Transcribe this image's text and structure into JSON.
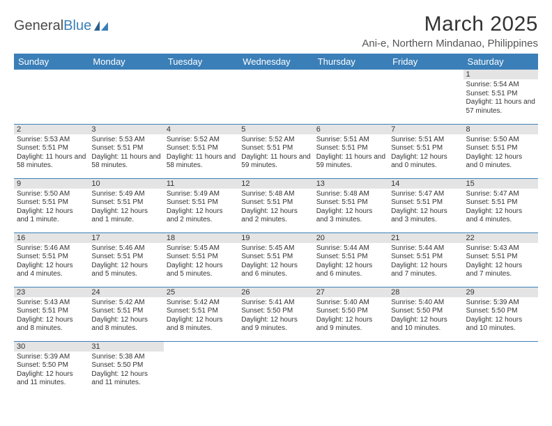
{
  "logo": {
    "text1": "General",
    "text2": "Blue"
  },
  "title": "March 2025",
  "location": "Ani-e, Northern Mindanao, Philippines",
  "colors": {
    "header_bg": "#3b7fb8",
    "header_text": "#ffffff",
    "daynum_bg": "#e4e4e4",
    "row_divider": "#3b7fb8",
    "body_text": "#333333"
  },
  "weekdays": [
    "Sunday",
    "Monday",
    "Tuesday",
    "Wednesday",
    "Thursday",
    "Friday",
    "Saturday"
  ],
  "weeks": [
    [
      {
        "n": "",
        "lines": []
      },
      {
        "n": "",
        "lines": []
      },
      {
        "n": "",
        "lines": []
      },
      {
        "n": "",
        "lines": []
      },
      {
        "n": "",
        "lines": []
      },
      {
        "n": "",
        "lines": []
      },
      {
        "n": "1",
        "lines": [
          "Sunrise: 5:54 AM",
          "Sunset: 5:51 PM",
          "Daylight: 11 hours and 57 minutes."
        ]
      }
    ],
    [
      {
        "n": "2",
        "lines": [
          "Sunrise: 5:53 AM",
          "Sunset: 5:51 PM",
          "Daylight: 11 hours and 58 minutes."
        ]
      },
      {
        "n": "3",
        "lines": [
          "Sunrise: 5:53 AM",
          "Sunset: 5:51 PM",
          "Daylight: 11 hours and 58 minutes."
        ]
      },
      {
        "n": "4",
        "lines": [
          "Sunrise: 5:52 AM",
          "Sunset: 5:51 PM",
          "Daylight: 11 hours and 58 minutes."
        ]
      },
      {
        "n": "5",
        "lines": [
          "Sunrise: 5:52 AM",
          "Sunset: 5:51 PM",
          "Daylight: 11 hours and 59 minutes."
        ]
      },
      {
        "n": "6",
        "lines": [
          "Sunrise: 5:51 AM",
          "Sunset: 5:51 PM",
          "Daylight: 11 hours and 59 minutes."
        ]
      },
      {
        "n": "7",
        "lines": [
          "Sunrise: 5:51 AM",
          "Sunset: 5:51 PM",
          "Daylight: 12 hours and 0 minutes."
        ]
      },
      {
        "n": "8",
        "lines": [
          "Sunrise: 5:50 AM",
          "Sunset: 5:51 PM",
          "Daylight: 12 hours and 0 minutes."
        ]
      }
    ],
    [
      {
        "n": "9",
        "lines": [
          "Sunrise: 5:50 AM",
          "Sunset: 5:51 PM",
          "Daylight: 12 hours and 1 minute."
        ]
      },
      {
        "n": "10",
        "lines": [
          "Sunrise: 5:49 AM",
          "Sunset: 5:51 PM",
          "Daylight: 12 hours and 1 minute."
        ]
      },
      {
        "n": "11",
        "lines": [
          "Sunrise: 5:49 AM",
          "Sunset: 5:51 PM",
          "Daylight: 12 hours and 2 minutes."
        ]
      },
      {
        "n": "12",
        "lines": [
          "Sunrise: 5:48 AM",
          "Sunset: 5:51 PM",
          "Daylight: 12 hours and 2 minutes."
        ]
      },
      {
        "n": "13",
        "lines": [
          "Sunrise: 5:48 AM",
          "Sunset: 5:51 PM",
          "Daylight: 12 hours and 3 minutes."
        ]
      },
      {
        "n": "14",
        "lines": [
          "Sunrise: 5:47 AM",
          "Sunset: 5:51 PM",
          "Daylight: 12 hours and 3 minutes."
        ]
      },
      {
        "n": "15",
        "lines": [
          "Sunrise: 5:47 AM",
          "Sunset: 5:51 PM",
          "Daylight: 12 hours and 4 minutes."
        ]
      }
    ],
    [
      {
        "n": "16",
        "lines": [
          "Sunrise: 5:46 AM",
          "Sunset: 5:51 PM",
          "Daylight: 12 hours and 4 minutes."
        ]
      },
      {
        "n": "17",
        "lines": [
          "Sunrise: 5:46 AM",
          "Sunset: 5:51 PM",
          "Daylight: 12 hours and 5 minutes."
        ]
      },
      {
        "n": "18",
        "lines": [
          "Sunrise: 5:45 AM",
          "Sunset: 5:51 PM",
          "Daylight: 12 hours and 5 minutes."
        ]
      },
      {
        "n": "19",
        "lines": [
          "Sunrise: 5:45 AM",
          "Sunset: 5:51 PM",
          "Daylight: 12 hours and 6 minutes."
        ]
      },
      {
        "n": "20",
        "lines": [
          "Sunrise: 5:44 AM",
          "Sunset: 5:51 PM",
          "Daylight: 12 hours and 6 minutes."
        ]
      },
      {
        "n": "21",
        "lines": [
          "Sunrise: 5:44 AM",
          "Sunset: 5:51 PM",
          "Daylight: 12 hours and 7 minutes."
        ]
      },
      {
        "n": "22",
        "lines": [
          "Sunrise: 5:43 AM",
          "Sunset: 5:51 PM",
          "Daylight: 12 hours and 7 minutes."
        ]
      }
    ],
    [
      {
        "n": "23",
        "lines": [
          "Sunrise: 5:43 AM",
          "Sunset: 5:51 PM",
          "Daylight: 12 hours and 8 minutes."
        ]
      },
      {
        "n": "24",
        "lines": [
          "Sunrise: 5:42 AM",
          "Sunset: 5:51 PM",
          "Daylight: 12 hours and 8 minutes."
        ]
      },
      {
        "n": "25",
        "lines": [
          "Sunrise: 5:42 AM",
          "Sunset: 5:51 PM",
          "Daylight: 12 hours and 8 minutes."
        ]
      },
      {
        "n": "26",
        "lines": [
          "Sunrise: 5:41 AM",
          "Sunset: 5:50 PM",
          "Daylight: 12 hours and 9 minutes."
        ]
      },
      {
        "n": "27",
        "lines": [
          "Sunrise: 5:40 AM",
          "Sunset: 5:50 PM",
          "Daylight: 12 hours and 9 minutes."
        ]
      },
      {
        "n": "28",
        "lines": [
          "Sunrise: 5:40 AM",
          "Sunset: 5:50 PM",
          "Daylight: 12 hours and 10 minutes."
        ]
      },
      {
        "n": "29",
        "lines": [
          "Sunrise: 5:39 AM",
          "Sunset: 5:50 PM",
          "Daylight: 12 hours and 10 minutes."
        ]
      }
    ],
    [
      {
        "n": "30",
        "lines": [
          "Sunrise: 5:39 AM",
          "Sunset: 5:50 PM",
          "Daylight: 12 hours and 11 minutes."
        ]
      },
      {
        "n": "31",
        "lines": [
          "Sunrise: 5:38 AM",
          "Sunset: 5:50 PM",
          "Daylight: 12 hours and 11 minutes."
        ]
      },
      {
        "n": "",
        "lines": []
      },
      {
        "n": "",
        "lines": []
      },
      {
        "n": "",
        "lines": []
      },
      {
        "n": "",
        "lines": []
      },
      {
        "n": "",
        "lines": []
      }
    ]
  ]
}
